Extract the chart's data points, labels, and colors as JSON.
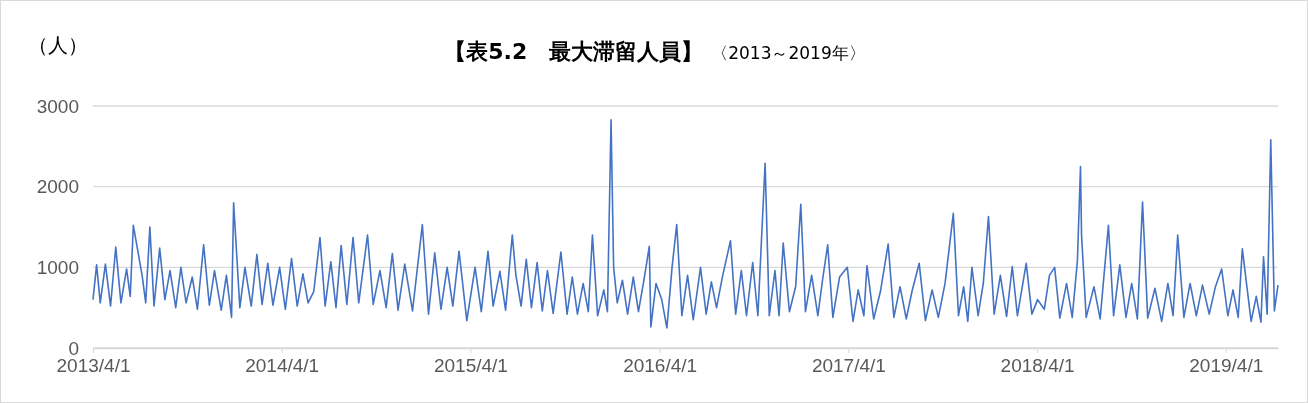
{
  "chart_data": {
    "type": "line",
    "title": "【表5.2　最大滞留人員】",
    "subtitle": "〈2013～2019年〉",
    "ylabel": "（人）",
    "xlim": [
      "2013-04-01",
      "2019-07-11"
    ],
    "xticks": [
      {
        "value": "2013-04-01",
        "label": "2013/4/1"
      },
      {
        "value": "2014-04-01",
        "label": "2014/4/1"
      },
      {
        "value": "2015-04-01",
        "label": "2015/4/1"
      },
      {
        "value": "2016-04-01",
        "label": "2016/4/1"
      },
      {
        "value": "2017-04-01",
        "label": "2017/4/1"
      },
      {
        "value": "2018-04-01",
        "label": "2018/4/1"
      },
      {
        "value": "2019-04-01",
        "label": "2019/4/1"
      }
    ],
    "ylim": [
      0,
      3000
    ],
    "yticks": [
      0,
      1000,
      2000,
      3000
    ],
    "grid": "y",
    "marker": "none",
    "line_style": "solid",
    "series": [
      {
        "color": "#4472c4",
        "x": [
          "2013-04-01",
          "2013-04-08",
          "2013-04-15",
          "2013-04-25",
          "2013-05-05",
          "2013-05-15",
          "2013-05-25",
          "2013-06-05",
          "2013-06-12",
          "2013-06-18",
          "2013-07-05",
          "2013-07-12",
          "2013-07-20",
          "2013-07-28",
          "2013-08-08",
          "2013-08-18",
          "2013-08-28",
          "2013-09-08",
          "2013-09-18",
          "2013-09-28",
          "2013-10-10",
          "2013-10-20",
          "2013-11-01",
          "2013-11-12",
          "2013-11-22",
          "2013-12-05",
          "2013-12-15",
          "2013-12-25",
          "2013-12-29",
          "2014-01-10",
          "2014-01-20",
          "2014-02-01",
          "2014-02-12",
          "2014-02-22",
          "2014-03-05",
          "2014-03-15",
          "2014-03-28",
          "2014-04-08",
          "2014-04-20",
          "2014-05-01",
          "2014-05-12",
          "2014-05-22",
          "2014-06-02",
          "2014-06-14",
          "2014-06-24",
          "2014-07-05",
          "2014-07-15",
          "2014-07-25",
          "2014-08-05",
          "2014-08-17",
          "2014-08-28",
          "2014-09-14",
          "2014-09-25",
          "2014-10-08",
          "2014-10-20",
          "2014-11-01",
          "2014-11-12",
          "2014-11-25",
          "2014-12-10",
          "2014-12-29",
          "2015-01-10",
          "2015-01-22",
          "2015-02-03",
          "2015-02-15",
          "2015-02-26",
          "2015-03-10",
          "2015-03-25",
          "2015-04-10",
          "2015-04-22",
          "2015-05-05",
          "2015-05-15",
          "2015-05-28",
          "2015-06-08",
          "2015-06-21",
          "2015-06-28",
          "2015-07-08",
          "2015-07-18",
          "2015-07-28",
          "2015-08-08",
          "2015-08-18",
          "2015-08-28",
          "2015-09-08",
          "2015-09-23",
          "2015-10-05",
          "2015-10-15",
          "2015-10-25",
          "2015-11-05",
          "2015-11-15",
          "2015-11-23",
          "2015-12-03",
          "2015-12-15",
          "2015-12-22",
          "2015-12-29",
          "2016-01-03",
          "2016-01-10",
          "2016-01-20",
          "2016-01-30",
          "2016-02-10",
          "2016-02-20",
          "2016-03-01",
          "2016-03-12",
          "2016-03-15",
          "2016-03-25",
          "2016-04-05",
          "2016-04-15",
          "2016-04-25",
          "2016-05-04",
          "2016-05-14",
          "2016-05-25",
          "2016-06-05",
          "2016-06-19",
          "2016-06-30",
          "2016-07-10",
          "2016-07-20",
          "2016-08-01",
          "2016-08-16",
          "2016-08-26",
          "2016-09-06",
          "2016-09-16",
          "2016-09-28",
          "2016-10-08",
          "2016-10-22",
          "2016-10-30",
          "2016-11-10",
          "2016-11-18",
          "2016-11-26",
          "2016-12-08",
          "2016-12-20",
          "2016-12-30",
          "2017-01-08",
          "2017-01-20",
          "2017-02-01",
          "2017-02-10",
          "2017-02-20",
          "2017-03-02",
          "2017-03-15",
          "2017-03-30",
          "2017-04-10",
          "2017-04-20",
          "2017-05-01",
          "2017-05-07",
          "2017-05-20",
          "2017-06-02",
          "2017-06-17",
          "2017-06-28",
          "2017-07-10",
          "2017-07-22",
          "2017-08-02",
          "2017-08-16",
          "2017-08-28",
          "2017-09-10",
          "2017-09-22",
          "2017-10-05",
          "2017-10-21",
          "2017-10-31",
          "2017-11-10",
          "2017-11-18",
          "2017-11-26",
          "2017-12-08",
          "2017-12-18",
          "2017-12-28",
          "2018-01-08",
          "2018-01-20",
          "2018-02-01",
          "2018-02-12",
          "2018-02-22",
          "2018-03-11",
          "2018-03-22",
          "2018-04-02",
          "2018-04-15",
          "2018-04-25",
          "2018-05-05",
          "2018-05-15",
          "2018-05-28",
          "2018-06-08",
          "2018-06-18",
          "2018-06-24",
          "2018-06-26",
          "2018-07-05",
          "2018-07-20",
          "2018-08-01",
          "2018-08-17",
          "2018-08-27",
          "2018-09-08",
          "2018-09-20",
          "2018-10-01",
          "2018-10-12",
          "2018-10-22",
          "2018-11-01",
          "2018-11-15",
          "2018-11-28",
          "2018-12-10",
          "2018-12-20",
          "2018-12-29",
          "2019-01-10",
          "2019-01-22",
          "2019-02-03",
          "2019-02-15",
          "2019-02-28",
          "2019-03-12",
          "2019-03-24",
          "2019-04-05",
          "2019-04-15",
          "2019-04-25",
          "2019-05-03",
          "2019-05-13",
          "2019-05-20",
          "2019-05-30",
          "2019-06-08",
          "2019-06-13",
          "2019-06-20",
          "2019-06-27",
          "2019-07-04",
          "2019-07-11"
        ],
        "values": [
          600,
          1030,
          560,
          1040,
          520,
          1250,
          560,
          980,
          640,
          1520,
          900,
          560,
          1500,
          520,
          1240,
          600,
          960,
          500,
          1000,
          560,
          880,
          480,
          1280,
          530,
          960,
          470,
          900,
          380,
          1800,
          500,
          1000,
          520,
          1160,
          540,
          1050,
          530,
          1000,
          480,
          1110,
          520,
          920,
          560,
          700,
          1370,
          520,
          1070,
          500,
          1270,
          540,
          1370,
          560,
          1400,
          540,
          960,
          500,
          1170,
          470,
          1040,
          460,
          1530,
          420,
          1180,
          480,
          1000,
          520,
          1200,
          340,
          1000,
          450,
          1200,
          520,
          950,
          470,
          1400,
          900,
          520,
          1100,
          500,
          1060,
          460,
          960,
          430,
          1190,
          420,
          880,
          420,
          800,
          450,
          1400,
          400,
          720,
          450,
          2830,
          1000,
          560,
          840,
          420,
          880,
          450,
          820,
          1260,
          260,
          800,
          600,
          250,
          1000,
          1530,
          400,
          900,
          350,
          1000,
          420,
          820,
          500,
          900,
          1330,
          420,
          960,
          400,
          1060,
          400,
          2290,
          400,
          960,
          400,
          1300,
          450,
          760,
          1780,
          450,
          900,
          400,
          840,
          1280,
          380,
          880,
          1000,
          330,
          720,
          400,
          1020,
          360,
          700,
          1290,
          380,
          760,
          360,
          700,
          1050,
          340,
          720,
          380,
          800,
          1670,
          400,
          760,
          330,
          1000,
          400,
          800,
          1630,
          420,
          900,
          390,
          1010,
          400,
          1050,
          420,
          600,
          480,
          900,
          1000,
          370,
          800,
          380,
          1080,
          2250,
          1400,
          380,
          760,
          360,
          1520,
          400,
          1030,
          380,
          800,
          360,
          1810,
          370,
          740,
          330,
          800,
          400,
          1400,
          380,
          800,
          400,
          780,
          420,
          760,
          980,
          400,
          720,
          380,
          1230,
          700,
          330,
          640,
          320,
          1130,
          420,
          2580,
          460,
          780
        ]
      }
    ]
  }
}
